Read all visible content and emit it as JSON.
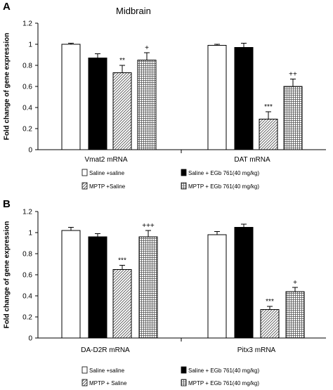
{
  "figure": {
    "panel_labels": [
      "A",
      "B"
    ],
    "title": "Midbrain"
  },
  "patterns": {
    "diagonal": "mptp-saline",
    "grid": "mptp-egb"
  },
  "chart_data": [
    {
      "type": "bar",
      "panel": "A",
      "title": "Midbrain",
      "xlabel": "",
      "ylabel": "Fold change of gene expression",
      "ylim": [
        0,
        1.2
      ],
      "yticks": [
        "0",
        "0.2",
        "0.4",
        "0.6",
        "0.8",
        "1",
        "1.2"
      ],
      "grid": false,
      "categories": [
        "Vmat2 mRNA",
        "DAT mRNA"
      ],
      "series": [
        {
          "name": "Saline +saline",
          "fill": "white",
          "values": [
            1.0,
            0.99
          ],
          "errors": [
            0.01,
            0.01
          ],
          "annotations": [
            "",
            ""
          ]
        },
        {
          "name": "Saline + EGb 761(40 mg/kg)",
          "fill": "black",
          "values": [
            0.87,
            0.97
          ],
          "errors": [
            0.04,
            0.04
          ],
          "annotations": [
            "",
            ""
          ]
        },
        {
          "name": "MPTP +Saline",
          "fill": "diagonal",
          "values": [
            0.73,
            0.29
          ],
          "errors": [
            0.07,
            0.07
          ],
          "annotations": [
            "**",
            "***"
          ]
        },
        {
          "name": "MPTP + EGb 761(40 mg/kg)",
          "fill": "grid",
          "values": [
            0.85,
            0.6
          ],
          "errors": [
            0.07,
            0.07
          ],
          "annotations": [
            "+",
            "++"
          ]
        }
      ],
      "legend": {
        "placement": "below",
        "items": [
          "Saline +saline",
          "Saline + EGb 761(40 mg/kg)",
          "MPTP +Saline",
          "MPTP + EGb 761(40 mg/kg)"
        ]
      }
    },
    {
      "type": "bar",
      "panel": "B",
      "title": "",
      "xlabel": "",
      "ylabel": "Fold change of gene expression",
      "ylim": [
        0,
        1.2
      ],
      "yticks": [
        "0",
        "0.2",
        "0.4",
        "0.6",
        "0.8",
        "1",
        "1.2"
      ],
      "grid": false,
      "categories": [
        "DA-D2R mRNA",
        "Pitx3 mRNA"
      ],
      "series": [
        {
          "name": "Saline +saline",
          "fill": "white",
          "values": [
            1.02,
            0.98
          ],
          "errors": [
            0.03,
            0.03
          ],
          "annotations": [
            "",
            ""
          ]
        },
        {
          "name": "Saline + EGb 761(40 mg/kg)",
          "fill": "black",
          "values": [
            0.96,
            1.05
          ],
          "errors": [
            0.03,
            0.03
          ],
          "annotations": [
            "",
            ""
          ]
        },
        {
          "name": "MPTP + Saline",
          "fill": "diagonal",
          "values": [
            0.65,
            0.27
          ],
          "errors": [
            0.04,
            0.03
          ],
          "annotations": [
            "***",
            "***"
          ]
        },
        {
          "name": "MPTP + EGb 761(40 mg/kg)",
          "fill": "grid",
          "values": [
            0.96,
            0.44
          ],
          "errors": [
            0.06,
            0.04
          ],
          "annotations": [
            "+++",
            "+"
          ]
        }
      ],
      "legend": {
        "placement": "below",
        "items": [
          "Saline +saline",
          "Saline + EGb 761(40 mg/kg)",
          "MPTP + Saline",
          "MPTP + EGb 761(40 mg/kg)"
        ]
      }
    }
  ]
}
